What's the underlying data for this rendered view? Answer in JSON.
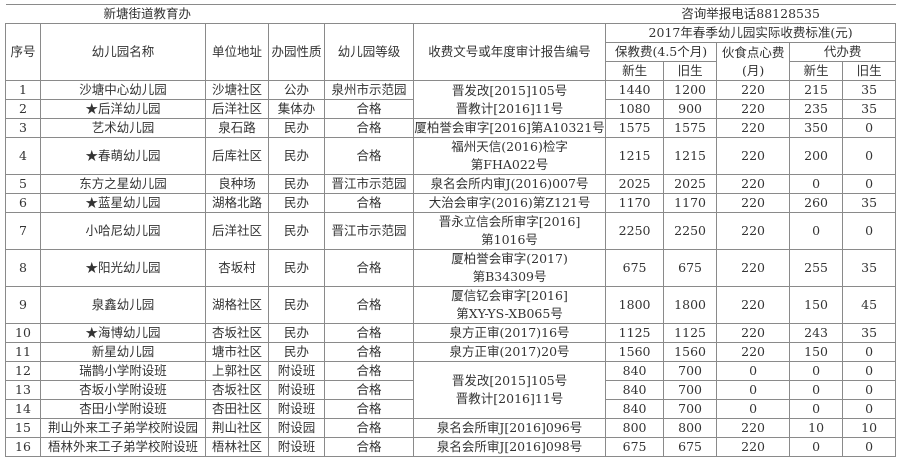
{
  "title_left": "新塘街道教育办",
  "title_right": "咨询举报电话88128535",
  "headers": {
    "no": "序号",
    "name": "幼儿园名称",
    "address": "单位地址",
    "nature": "办园性质",
    "grade": "幼儿园等级",
    "doc": "收费文号或年度审计报告编号",
    "fee_group": "2017年春季幼儿园实际收费标准(元)",
    "tuition": "保教费(4.5个月)",
    "meal": "伙食点心费\n(月)",
    "agency": "代办费",
    "new": "新生",
    "old": "旧生"
  },
  "rows": [
    {
      "no": "1",
      "name": "沙塘中心幼儿园",
      "address": "沙塘社区",
      "nature": "公办",
      "grade": "泉州市示范园",
      "doc": "晋发改[2015]105号\n晋教计[2016]11号",
      "doc_span": 2,
      "t_new": "1440",
      "t_old": "1200",
      "meal": "220",
      "a_new": "215",
      "a_old": "35"
    },
    {
      "no": "2",
      "name": "★后洋幼儿园",
      "address": "后洋社区",
      "nature": "集体办",
      "grade": "合格",
      "doc": null,
      "t_new": "1080",
      "t_old": "900",
      "meal": "220",
      "a_new": "235",
      "a_old": "35"
    },
    {
      "no": "3",
      "name": "艺术幼儿园",
      "address": "泉石路",
      "nature": "民办",
      "grade": "合格",
      "doc": "厦柏誉会审字[2016]第A10321号",
      "doc_span": 1,
      "t_new": "1575",
      "t_old": "1575",
      "meal": "220",
      "a_new": "350",
      "a_old": "0"
    },
    {
      "no": "4",
      "name": "★春萌幼儿园",
      "address": "后库社区",
      "nature": "民办",
      "grade": "合格",
      "doc": "福州天信(2016)检字\n第FHA022号",
      "doc_span": 1,
      "t_new": "1215",
      "t_old": "1215",
      "meal": "220",
      "a_new": "200",
      "a_old": "0"
    },
    {
      "no": "5",
      "name": "东方之星幼儿园",
      "address": "良种场",
      "nature": "民办",
      "grade": "晋江市示范园",
      "doc": "泉名会所内审J(2016)007号",
      "doc_span": 1,
      "t_new": "2025",
      "t_old": "2025",
      "meal": "220",
      "a_new": "0",
      "a_old": "0"
    },
    {
      "no": "6",
      "name": "★蓝星幼儿园",
      "address": "湖格北路",
      "nature": "民办",
      "grade": "合格",
      "doc": "大治会审字(2016)第Z121号",
      "doc_span": 1,
      "t_new": "1170",
      "t_old": "1170",
      "meal": "220",
      "a_new": "260",
      "a_old": "35"
    },
    {
      "no": "7",
      "name": "小哈尼幼儿园",
      "address": "后洋社区",
      "nature": "民办",
      "grade": "晋江市示范园",
      "doc": "晋永立信会所审字[2016]\n第1016号",
      "doc_span": 1,
      "t_new": "2250",
      "t_old": "2250",
      "meal": "220",
      "a_new": "0",
      "a_old": "0"
    },
    {
      "no": "8",
      "name": "★阳光幼儿园",
      "address": "杏坂村",
      "nature": "民办",
      "grade": "合格",
      "doc": "厦柏誉会审字(2017)\n第B34309号",
      "doc_span": 1,
      "t_new": "675",
      "t_old": "675",
      "meal": "220",
      "a_new": "255",
      "a_old": "35"
    },
    {
      "no": "9",
      "name": "泉鑫幼儿园",
      "address": "湖格社区",
      "nature": "民办",
      "grade": "合格",
      "doc": "厦信钇会审字[2016]\n第XY-YS-XB065号",
      "doc_span": 1,
      "t_new": "1800",
      "t_old": "1800",
      "meal": "220",
      "a_new": "150",
      "a_old": "45"
    },
    {
      "no": "10",
      "name": "★海博幼儿园",
      "address": "杏坂社区",
      "nature": "民办",
      "grade": "合格",
      "doc": "泉方正审(2017)16号",
      "doc_span": 1,
      "t_new": "1125",
      "t_old": "1125",
      "meal": "220",
      "a_new": "243",
      "a_old": "35"
    },
    {
      "no": "11",
      "name": "新星幼儿园",
      "address": "塘市社区",
      "nature": "民办",
      "grade": "合格",
      "doc": "泉方正审(2017)20号",
      "doc_span": 1,
      "t_new": "1560",
      "t_old": "1560",
      "meal": "220",
      "a_new": "150",
      "a_old": "0"
    },
    {
      "no": "12",
      "name": "瑞鹊小学附设班",
      "address": "上郭社区",
      "nature": "附设班",
      "grade": "合格",
      "doc": "晋发改[2015]105号\n晋教计[2016]11号",
      "doc_span": 3,
      "t_new": "840",
      "t_old": "700",
      "meal": "0",
      "a_new": "0",
      "a_old": "0"
    },
    {
      "no": "13",
      "name": "杏坂小学附设班",
      "address": "杏坂社区",
      "nature": "附设班",
      "grade": "合格",
      "doc": null,
      "t_new": "840",
      "t_old": "700",
      "meal": "0",
      "a_new": "0",
      "a_old": "0"
    },
    {
      "no": "14",
      "name": "杏田小学附设班",
      "address": "杏田社区",
      "nature": "附设班",
      "grade": "合格",
      "doc": null,
      "t_new": "840",
      "t_old": "700",
      "meal": "0",
      "a_new": "0",
      "a_old": "0"
    },
    {
      "no": "15",
      "name": "荆山外来工子弟学校附设园",
      "address": "荆山社区",
      "nature": "附设园",
      "grade": "合格",
      "doc": "泉名会所审J[2016]096号",
      "doc_span": 1,
      "t_new": "800",
      "t_old": "800",
      "meal": "220",
      "a_new": "10",
      "a_old": "10"
    },
    {
      "no": "16",
      "name": "梧林外来工子弟学校附设班",
      "address": "梧林社区",
      "nature": "附设班",
      "grade": "合格",
      "doc": "泉名会所审J[2016]098号",
      "doc_span": 1,
      "t_new": "675",
      "t_old": "675",
      "meal": "220",
      "a_new": "0",
      "a_old": "0"
    }
  ]
}
